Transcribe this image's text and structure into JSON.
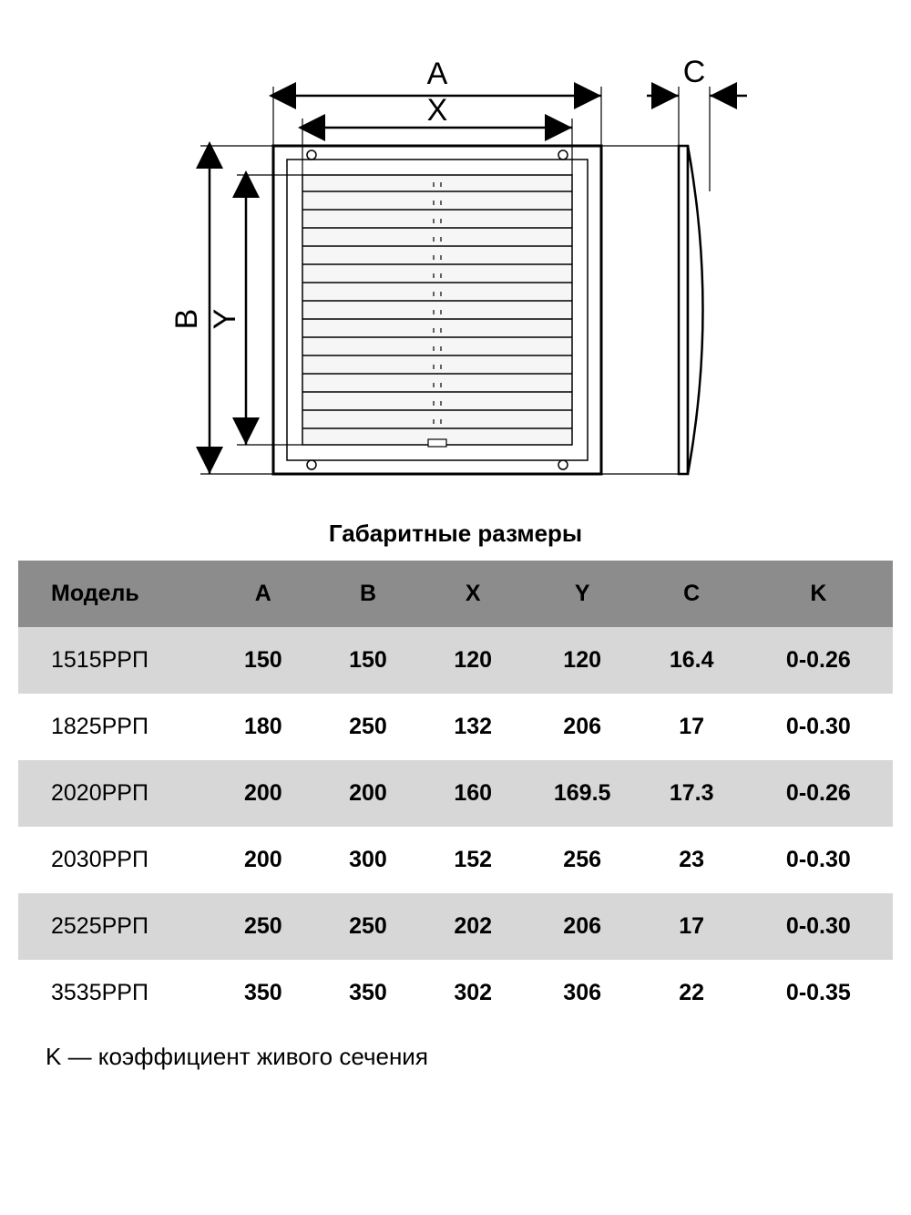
{
  "diagram": {
    "labels": {
      "A": "A",
      "X": "X",
      "B": "B",
      "Y": "Y",
      "C": "C"
    },
    "stroke": "#000000",
    "fill_light": "#f4f4f4",
    "label_fontsize": 34
  },
  "caption": "Габаритные размеры",
  "table": {
    "header_bg": "#8c8c8c",
    "row_odd_bg": "#d7d7d7",
    "row_even_bg": "#ffffff",
    "columns": [
      "Модель",
      "A",
      "B",
      "X",
      "Y",
      "C",
      "K"
    ],
    "col_widths_pct": [
      22,
      12,
      12,
      12,
      13,
      12,
      17
    ],
    "rows": [
      [
        "1515РРП",
        "150",
        "150",
        "120",
        "120",
        "16.4",
        "0-0.26"
      ],
      [
        "1825РРП",
        "180",
        "250",
        "132",
        "206",
        "17",
        "0-0.30"
      ],
      [
        "2020РРП",
        "200",
        "200",
        "160",
        "169.5",
        "17.3",
        "0-0.26"
      ],
      [
        "2030РРП",
        "200",
        "300",
        "152",
        "256",
        "23",
        "0-0.30"
      ],
      [
        "2525РРП",
        "250",
        "250",
        "202",
        "206",
        "17",
        "0-0.30"
      ],
      [
        "3535РРП",
        "350",
        "350",
        "302",
        "306",
        "22",
        "0-0.35"
      ]
    ]
  },
  "footnote": "K — коэффициент живого сечения"
}
